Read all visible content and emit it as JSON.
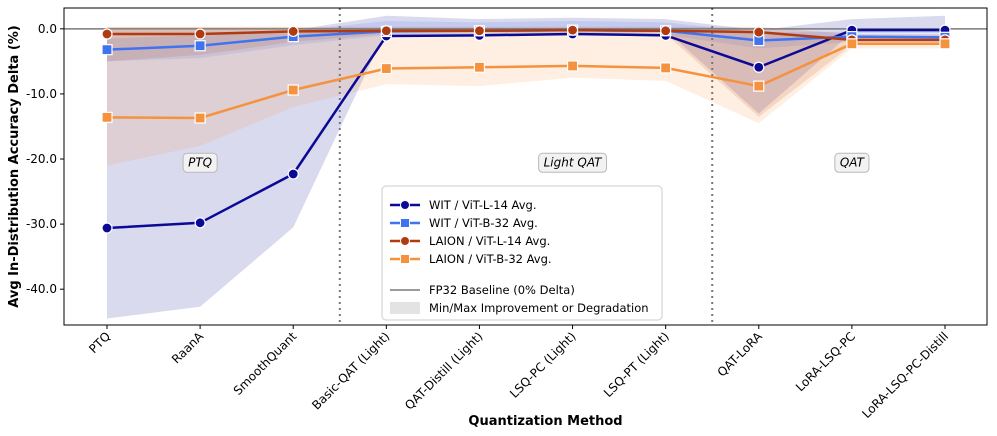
{
  "chart_data": {
    "type": "line",
    "title": "",
    "xlabel": "Quantization Method",
    "ylabel": "Avg In-Distribution Accuracy Delta (%)",
    "ylim": [
      -45.5,
      3.2
    ],
    "yticks": [
      0,
      -10,
      -20,
      -30,
      -40
    ],
    "ytick_labels": [
      "0.0",
      "-10.0",
      "-20.0",
      "-30.0",
      "-40.0"
    ],
    "categories": [
      "PTQ",
      "RaanA",
      "SmoothQuant",
      "Basic-QAT (Light)",
      "QAT-Distill (Light)",
      "LSQ-PC (Light)",
      "LSQ-PT (Light)",
      "QAT-LoRA",
      "LoRA-LSQ-PC",
      "LoRA-LSQ-PC-Distill"
    ],
    "baseline": 0,
    "region_dividers_after": [
      2.5,
      6.5
    ],
    "regions": [
      {
        "label": "PTQ",
        "at": 1,
        "y": -20.5
      },
      {
        "label": "Light QAT",
        "at": 5,
        "y": -20.5
      },
      {
        "label": "QAT",
        "at": 8,
        "y": -20.5
      }
    ],
    "series": [
      {
        "name": "WIT / ViT-L-14 Avg.",
        "color": "#0a0a96",
        "marker": "circle",
        "values": [
          -30.6,
          -29.8,
          -22.3,
          -1.1,
          -1.0,
          -0.8,
          -1.0,
          -5.9,
          -0.2,
          -0.2
        ],
        "band_min": [
          -44.5,
          -42.7,
          -30.5,
          -0.2,
          -0.2,
          -0.2,
          -0.2,
          -13.0,
          -0.6,
          -0.6
        ],
        "band_max": [
          -0.2,
          -0.2,
          -0.2,
          2.0,
          1.5,
          1.7,
          1.5,
          -0.2,
          1.5,
          2.0
        ]
      },
      {
        "name": "WIT / ViT-B-32 Avg.",
        "color": "#3f73f0",
        "marker": "square",
        "values": [
          -3.2,
          -2.6,
          -1.2,
          -0.4,
          -0.3,
          -0.2,
          -0.3,
          -1.8,
          -1.2,
          -1.3
        ],
        "band_min": [
          -5.0,
          -4.5,
          -2.5,
          -1.0,
          -0.9,
          -0.8,
          -0.9,
          -3.0,
          -2.0,
          -2.0
        ],
        "band_max": [
          -1.5,
          -1.0,
          -0.3,
          1.2,
          1.0,
          1.2,
          1.0,
          -0.5,
          -0.5,
          -0.5
        ]
      },
      {
        "name": "LAION / ViT-L-14 Avg.",
        "color": "#b23a10",
        "marker": "circle",
        "values": [
          -0.8,
          -0.8,
          -0.4,
          -0.3,
          -0.3,
          -0.2,
          -0.3,
          -0.5,
          -1.7,
          -1.7
        ],
        "band_min": [
          -5.0,
          -4.0,
          -2.0,
          -0.8,
          -0.8,
          -0.8,
          -0.8,
          -13.5,
          -2.5,
          -2.5
        ],
        "band_max": [
          0.3,
          0.3,
          0.3,
          0.3,
          0.3,
          0.3,
          0.3,
          0.3,
          -0.8,
          -0.8
        ]
      },
      {
        "name": "LAION / ViT-B-32 Avg.",
        "color": "#f5923e",
        "marker": "square",
        "values": [
          -13.6,
          -13.7,
          -9.4,
          -6.1,
          -5.9,
          -5.7,
          -6.0,
          -8.8,
          -2.3,
          -2.3
        ],
        "band_min": [
          -21.0,
          -18.0,
          -12.0,
          -8.5,
          -8.8,
          -7.5,
          -8.0,
          -14.5,
          -3.0,
          -3.0
        ],
        "band_max": [
          0.3,
          0.3,
          0.3,
          -0.3,
          -0.3,
          -0.3,
          -0.3,
          -0.3,
          -1.5,
          -1.5
        ]
      }
    ],
    "legend": {
      "placement": "center",
      "baseline_label": "FP32 Baseline (0% Delta)",
      "band_label": "Min/Max Improvement or Degradation"
    }
  }
}
